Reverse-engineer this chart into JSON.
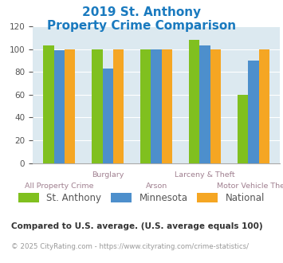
{
  "title_line1": "2019 St. Anthony",
  "title_line2": "Property Crime Comparison",
  "title_color": "#1a7abf",
  "groups": [
    {
      "label_top": "",
      "label_bottom": "All Property Crime",
      "st_anthony": 103,
      "minnesota": 99,
      "national": 100
    },
    {
      "label_top": "Burglary",
      "label_bottom": "",
      "st_anthony": 100,
      "minnesota": 83,
      "national": 100
    },
    {
      "label_top": "",
      "label_bottom": "Arson",
      "st_anthony": 100,
      "minnesota": 100,
      "national": 100
    },
    {
      "label_top": "Larceny & Theft",
      "label_bottom": "",
      "st_anthony": 108,
      "minnesota": 103,
      "national": 100
    },
    {
      "label_top": "",
      "label_bottom": "Motor Vehicle Theft",
      "st_anthony": 60,
      "minnesota": 90,
      "national": 100
    }
  ],
  "color_st_anthony": "#80c01f",
  "color_minnesota": "#4d8fcc",
  "color_national": "#f5a623",
  "ylim": [
    0,
    120
  ],
  "yticks": [
    0,
    20,
    40,
    60,
    80,
    100,
    120
  ],
  "plot_bg": "#dce9f0",
  "legend_labels": [
    "St. Anthony",
    "Minnesota",
    "National"
  ],
  "label_color": "#a08090",
  "footnote1": "Compared to U.S. average. (U.S. average equals 100)",
  "footnote2": "© 2025 CityRating.com - https://www.cityrating.com/crime-statistics/",
  "footnote1_color": "#333333",
  "footnote2_color": "#999999",
  "footnote2_link_color": "#1a7abf"
}
